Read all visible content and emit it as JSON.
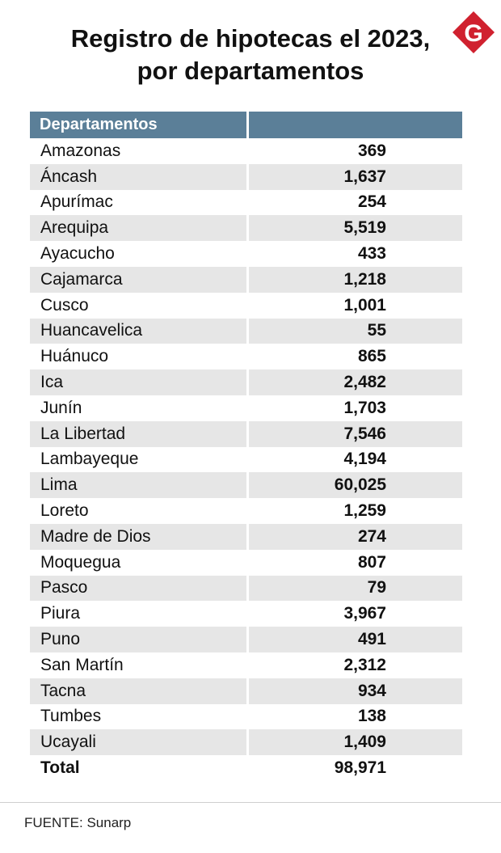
{
  "title_line1": "Registro de hipotecas el 2023,",
  "title_line2": "por departamentos",
  "logo_letter": "G",
  "logo_color": "#d0212f",
  "header_color": "#5b7f98",
  "source": "FUENTE: Sunarp",
  "chart_data": {
    "type": "table",
    "columns": [
      "Departamentos",
      ""
    ],
    "rows": [
      {
        "name": "Amazonas",
        "value": "369"
      },
      {
        "name": "Áncash",
        "value": "1,637"
      },
      {
        "name": "Apurímac",
        "value": "254"
      },
      {
        "name": "Arequipa",
        "value": "5,519"
      },
      {
        "name": "Ayacucho",
        "value": "433"
      },
      {
        "name": "Cajamarca",
        "value": "1,218"
      },
      {
        "name": "Cusco",
        "value": "1,001"
      },
      {
        "name": "Huancavelica",
        "value": "55"
      },
      {
        "name": "Huánuco",
        "value": "865"
      },
      {
        "name": "Ica",
        "value": "2,482"
      },
      {
        "name": "Junín",
        "value": "1,703"
      },
      {
        "name": "La Libertad",
        "value": "7,546"
      },
      {
        "name": "Lambayeque",
        "value": "4,194"
      },
      {
        "name": "Lima",
        "value": "60,025"
      },
      {
        "name": "Loreto",
        "value": "1,259"
      },
      {
        "name": "Madre de Dios",
        "value": "274"
      },
      {
        "name": "Moquegua",
        "value": "807"
      },
      {
        "name": "Pasco",
        "value": "79"
      },
      {
        "name": "Piura",
        "value": "3,967"
      },
      {
        "name": "Puno",
        "value": "491"
      },
      {
        "name": "San Martín",
        "value": "2,312"
      },
      {
        "name": "Tacna",
        "value": "934"
      },
      {
        "name": "Tumbes",
        "value": "138"
      },
      {
        "name": "Ucayali",
        "value": "1,409"
      }
    ],
    "total": {
      "name": "Total",
      "value": "98,971"
    }
  }
}
